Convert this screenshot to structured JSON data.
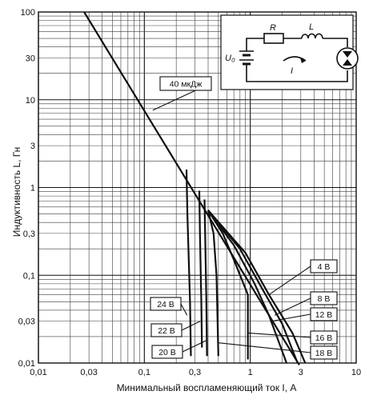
{
  "chart_data": {
    "type": "line",
    "xscale": "log",
    "yscale": "log",
    "xlim": [
      0.01,
      10
    ],
    "ylim": [
      0.01,
      100
    ],
    "grid": true,
    "xlabel": "Минимальный воспламеняющий ток I, А",
    "ylabel": "Индуктивность L, Гн",
    "x_ticks": [
      "0,01",
      "0,03",
      "0,1",
      "0,3",
      "1",
      "3",
      "10"
    ],
    "y_ticks": [
      "100",
      "30",
      "10",
      "3",
      "1",
      "0,3",
      "0,1",
      "0,03",
      "0,01"
    ],
    "series": [
      {
        "name": "40 мкДж",
        "x": [
          0.027,
          2.9
        ],
        "y": [
          100,
          0.0095
        ]
      },
      {
        "name": "24 В",
        "x": [
          0.25,
          0.255,
          0.27,
          0.275
        ],
        "y": [
          1.6,
          0.5,
          0.05,
          0.012
        ]
      },
      {
        "name": "22 В",
        "x": [
          0.33,
          0.335,
          0.345,
          0.35
        ],
        "y": [
          0.92,
          0.3,
          0.05,
          0.015
        ]
      },
      {
        "name": "20 В",
        "x": [
          0.37,
          0.375,
          0.385,
          0.39
        ],
        "y": [
          0.73,
          0.3,
          0.05,
          0.012
        ]
      },
      {
        "name": "18 В",
        "x": [
          0.4,
          0.45,
          0.48,
          0.5
        ],
        "y": [
          0.55,
          0.3,
          0.1,
          0.012
        ]
      },
      {
        "name": "16 В",
        "x": [
          0.4,
          0.55,
          0.7,
          0.95,
          0.95
        ],
        "y": [
          0.55,
          0.3,
          0.15,
          0.06,
          0.011
        ]
      },
      {
        "name": "12 В",
        "x": [
          0.4,
          0.7,
          1.1,
          1.5,
          2.2
        ],
        "y": [
          0.55,
          0.22,
          0.08,
          0.035,
          0.01
        ]
      },
      {
        "name": "8 В",
        "x": [
          0.4,
          0.8,
          1.3,
          2.0,
          2.8
        ],
        "y": [
          0.55,
          0.2,
          0.07,
          0.028,
          0.01
        ]
      },
      {
        "name": "4 В",
        "x": [
          0.4,
          0.9,
          1.5,
          2.5,
          3.3
        ],
        "y": [
          0.55,
          0.18,
          0.06,
          0.022,
          0.01
        ]
      }
    ]
  },
  "inset": {
    "resistor_label": "R",
    "inductor_label": "L",
    "source_label": "U₀",
    "current_label": "I"
  }
}
